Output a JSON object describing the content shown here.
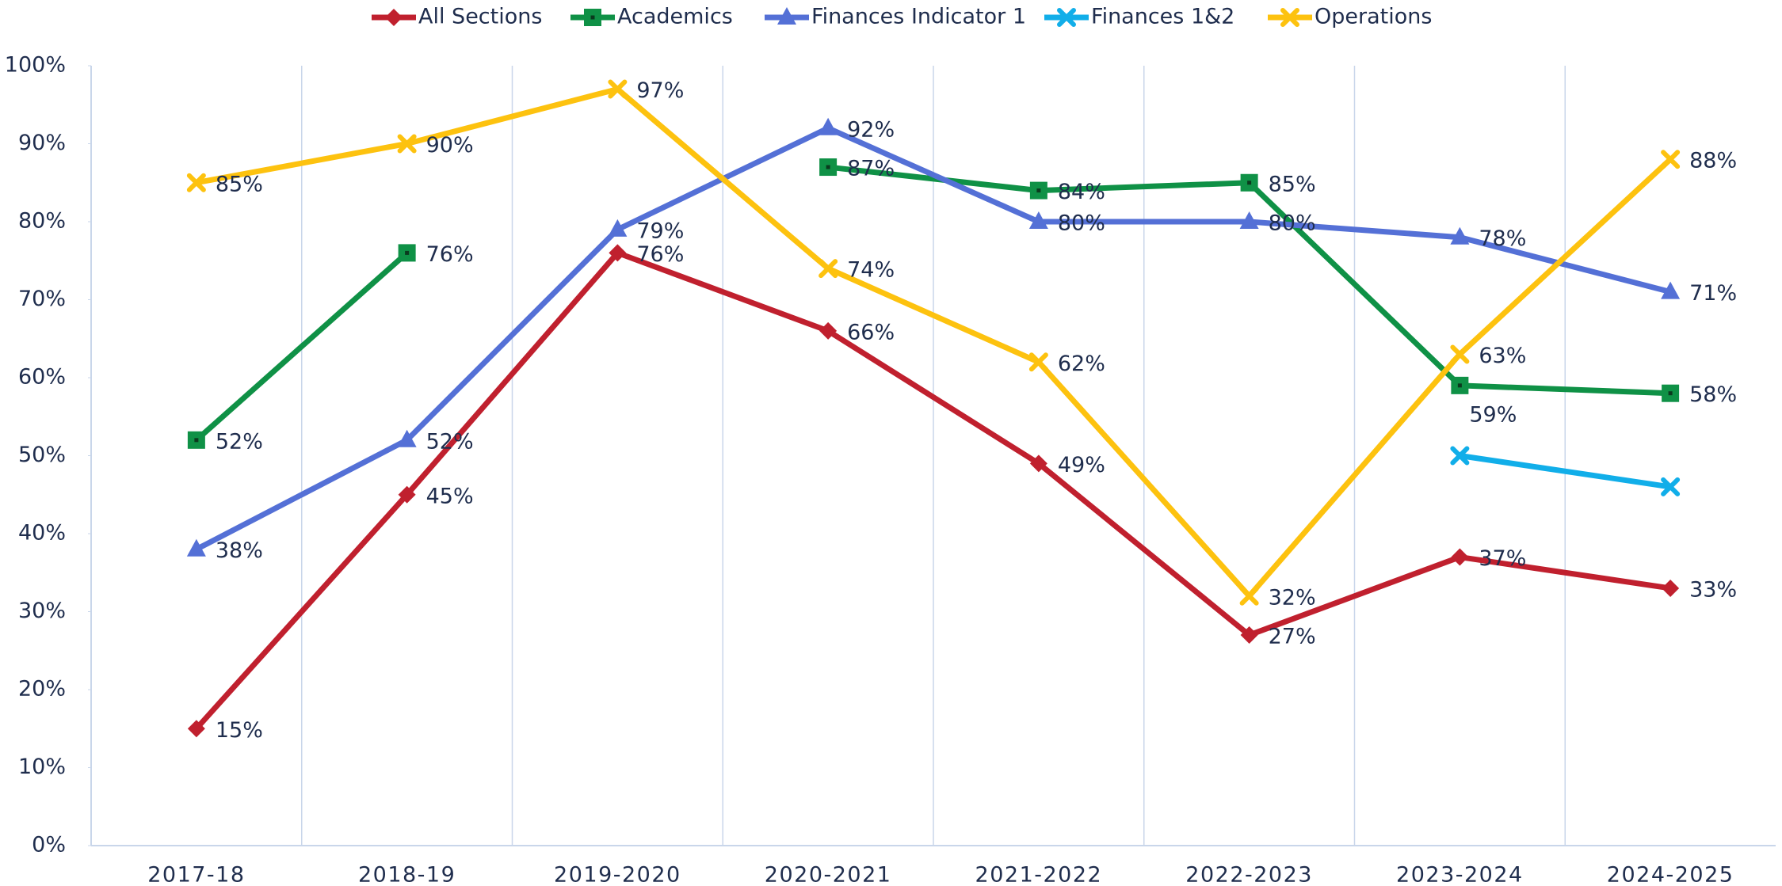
{
  "chart_data": {
    "type": "line",
    "categories": [
      "2017-18",
      "2018-19",
      "2019-2020",
      "2020-2021",
      "2021-2022",
      "2022-2023",
      "2023-2024",
      "2024-2025"
    ],
    "series": [
      {
        "name": "All Sections",
        "color": "#c0202e",
        "marker": "diamond",
        "values": [
          15,
          45,
          76,
          66,
          49,
          27,
          37,
          33
        ],
        "value_labels": [
          "15%",
          "45%",
          "76%",
          "66%",
          "49%",
          "27%",
          "37%",
          "33%"
        ]
      },
      {
        "name": "Academics",
        "color": "#0f9146",
        "marker": "square",
        "values": [
          52,
          76,
          null,
          87,
          84,
          85,
          59,
          58
        ],
        "value_labels": [
          "52%",
          "76%",
          null,
          "87%",
          "84%",
          "85%",
          "59%",
          "58%"
        ]
      },
      {
        "name": "Finances Indicator 1",
        "color": "#5470d6",
        "marker": "triangle",
        "values": [
          38,
          52,
          79,
          92,
          80,
          80,
          78,
          71
        ],
        "value_labels": [
          "38%",
          "52%",
          "79%",
          "92%",
          "80%",
          "80%",
          "78%",
          "71%"
        ]
      },
      {
        "name": "Finances 1&2",
        "color": "#11aee9",
        "marker": "x",
        "values": [
          null,
          null,
          null,
          null,
          null,
          null,
          50,
          46
        ]
      },
      {
        "name": "Operations",
        "color": "#fdc20f",
        "marker": "x",
        "values": [
          85,
          90,
          97,
          74,
          62,
          32,
          63,
          88
        ],
        "value_labels": [
          "85%",
          "90%",
          "97%",
          "74%",
          "62%",
          "32%",
          "63%",
          "88%"
        ]
      }
    ],
    "ylim": [
      0,
      100
    ],
    "yticks": [
      {
        "value": 0,
        "label": "0%"
      },
      {
        "value": 10,
        "label": "10%"
      },
      {
        "value": 20,
        "label": "20%"
      },
      {
        "value": 30,
        "label": "30%"
      },
      {
        "value": 40,
        "label": "40%"
      },
      {
        "value": 50,
        "label": "50%"
      },
      {
        "value": 60,
        "label": "60%"
      },
      {
        "value": 70,
        "label": "70%"
      },
      {
        "value": 80,
        "label": "80%"
      },
      {
        "value": 90,
        "label": "90%"
      },
      {
        "value": 100,
        "label": "100%"
      }
    ],
    "legend": "top",
    "grid": "vertical"
  }
}
